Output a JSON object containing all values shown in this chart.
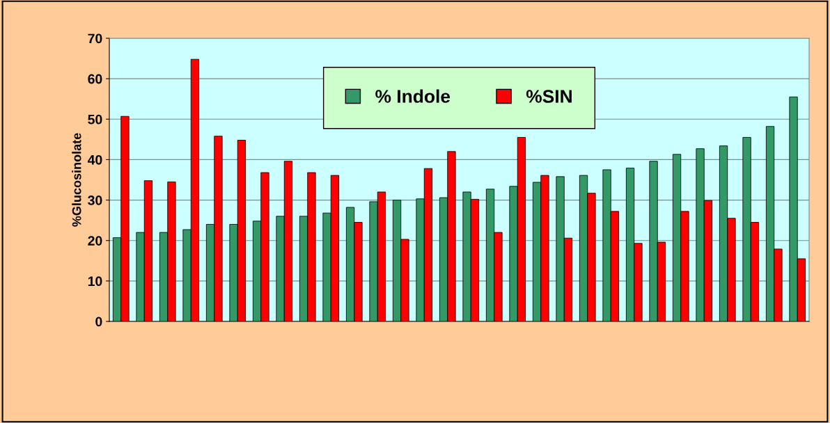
{
  "chart_data": {
    "type": "bar",
    "ylabel": "%Glucosinolate",
    "categories": [
      null,
      null,
      null,
      null,
      null,
      null,
      null,
      null,
      null,
      null,
      null,
      null,
      null,
      null,
      null,
      null,
      null,
      null,
      null,
      null,
      null,
      null,
      null,
      null,
      null,
      null,
      null,
      null,
      null,
      null
    ],
    "series": [
      {
        "name": "% Indole",
        "color": "#339966",
        "values": [
          20.7,
          22,
          22,
          22.7,
          24,
          24,
          24.8,
          26,
          26,
          26.8,
          28.2,
          29.6,
          30,
          30.3,
          30.6,
          32,
          32.7,
          33.4,
          34.4,
          35.8,
          36.1,
          37.5,
          37.9,
          39.6,
          41.3,
          42.7,
          43.4,
          45.5,
          48.2,
          55.5
        ]
      },
      {
        "name": "%SIN",
        "color": "#ff0000",
        "values": [
          50.7,
          34.8,
          34.5,
          64.8,
          45.8,
          44.8,
          36.8,
          39.6,
          36.8,
          36.1,
          24.5,
          32,
          20.3,
          37.8,
          42,
          30.2,
          22,
          45.5,
          36.1,
          20.6,
          31.7,
          27.2,
          19.3,
          19.6,
          27.2,
          29.9,
          25.5,
          24.5,
          17.9,
          15.5
        ]
      }
    ],
    "ylim": [
      0,
      70
    ],
    "yticks": [
      0,
      10,
      20,
      30,
      40,
      50,
      60,
      70
    ],
    "grid": "y",
    "legend": "top"
  }
}
